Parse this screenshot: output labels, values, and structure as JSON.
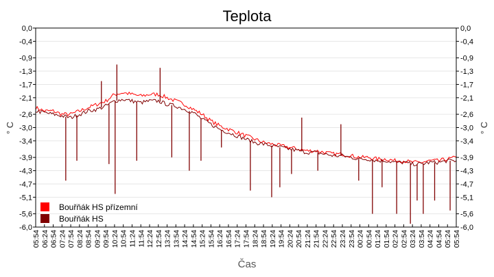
{
  "chart_data": {
    "type": "line",
    "title": "Teplota",
    "xlabel": "Čas",
    "ylabel": "° C",
    "ylabel_right": "° C",
    "ylim": [
      -6.0,
      0.0
    ],
    "grid": true,
    "legend_position": "bottom-left",
    "y_ticks": [
      "0,0",
      "-0,4",
      "-0,9",
      "-1,3",
      "-1,7",
      "-2,1",
      "-2,6",
      "-3,0",
      "-3,4",
      "-3,9",
      "-4,3",
      "-4,7",
      "-5,1",
      "-5,6",
      "-6,0"
    ],
    "x_ticks": [
      "05:54",
      "06:24",
      "06:54",
      "07:24",
      "07:54",
      "08:24",
      "08:54",
      "09:24",
      "09:54",
      "10:24",
      "10:54",
      "11:24",
      "11:54",
      "12:24",
      "12:54",
      "13:24",
      "13:54",
      "14:24",
      "14:54",
      "15:24",
      "15:54",
      "16:24",
      "16:54",
      "17:24",
      "17:54",
      "18:24",
      "18:54",
      "19:24",
      "19:54",
      "20:24",
      "20:54",
      "21:24",
      "21:54",
      "22:24",
      "22:54",
      "23:24",
      "23:54",
      "00:24",
      "00:54",
      "01:24",
      "01:54",
      "02:24",
      "02:54",
      "03:24",
      "03:54",
      "04:24",
      "04:54",
      "05:24",
      "05:54"
    ],
    "series": [
      {
        "name": "Bouřňák HS přízemní",
        "color": "#ff0000",
        "values": [
          -2.4,
          -2.5,
          -2.5,
          -2.6,
          -2.6,
          -2.5,
          -2.4,
          -2.3,
          -2.2,
          -2.0,
          -1.95,
          -2.0,
          -2.05,
          -2.0,
          -2.0,
          -2.1,
          -2.2,
          -2.3,
          -2.45,
          -2.6,
          -2.8,
          -2.95,
          -3.05,
          -3.15,
          -3.25,
          -3.35,
          -3.45,
          -3.5,
          -3.55,
          -3.6,
          -3.65,
          -3.7,
          -3.7,
          -3.75,
          -3.8,
          -3.8,
          -3.85,
          -3.9,
          -3.9,
          -3.95,
          -3.95,
          -4.0,
          -4.0,
          -4.05,
          -4.05,
          -4.0,
          -4.0,
          -3.95,
          -3.9
        ]
      },
      {
        "name": "Bouřňák HS",
        "color": "#800000",
        "values": [
          -2.5,
          -2.55,
          -2.6,
          -2.65,
          -2.7,
          -2.6,
          -2.5,
          -2.45,
          -2.35,
          -2.2,
          -2.15,
          -2.2,
          -2.25,
          -2.2,
          -2.2,
          -2.3,
          -2.35,
          -2.45,
          -2.55,
          -2.75,
          -2.9,
          -3.05,
          -3.15,
          -3.25,
          -3.35,
          -3.45,
          -3.5,
          -3.55,
          -3.6,
          -3.65,
          -3.7,
          -3.75,
          -3.75,
          -3.8,
          -3.85,
          -3.85,
          -3.9,
          -3.95,
          -3.95,
          -4.0,
          -4.0,
          -4.05,
          -4.05,
          -4.1,
          -4.1,
          -4.05,
          -4.05,
          -4.0,
          -4.0
        ],
        "spikes": [
          [
            "07:37",
            -4.6
          ],
          [
            "08:15",
            -4.0
          ],
          [
            "09:39",
            -1.6
          ],
          [
            "10:05",
            -4.1
          ],
          [
            "10:26",
            -5.0
          ],
          [
            "10:32",
            -1.1
          ],
          [
            "11:40",
            -4.0
          ],
          [
            "13:00",
            -1.2
          ],
          [
            "13:40",
            -3.9
          ],
          [
            "14:40",
            -4.3
          ],
          [
            "15:20",
            -4.0
          ],
          [
            "16:30",
            -3.6
          ],
          [
            "18:09",
            -4.9
          ],
          [
            "19:22",
            -5.1
          ],
          [
            "19:50",
            -4.8
          ],
          [
            "20:30",
            -4.4
          ],
          [
            "21:05",
            -2.7
          ],
          [
            "22:00",
            -4.3
          ],
          [
            "23:19",
            -2.9
          ],
          [
            "00:20",
            -4.6
          ],
          [
            "01:07",
            -5.6
          ],
          [
            "01:40",
            -4.8
          ],
          [
            "02:30",
            -5.6
          ],
          [
            "03:17",
            -5.9
          ],
          [
            "03:40",
            -5.2
          ],
          [
            "04:01",
            -5.6
          ],
          [
            "04:40",
            -5.2
          ],
          [
            "05:33",
            -5.5
          ]
        ]
      }
    ]
  }
}
